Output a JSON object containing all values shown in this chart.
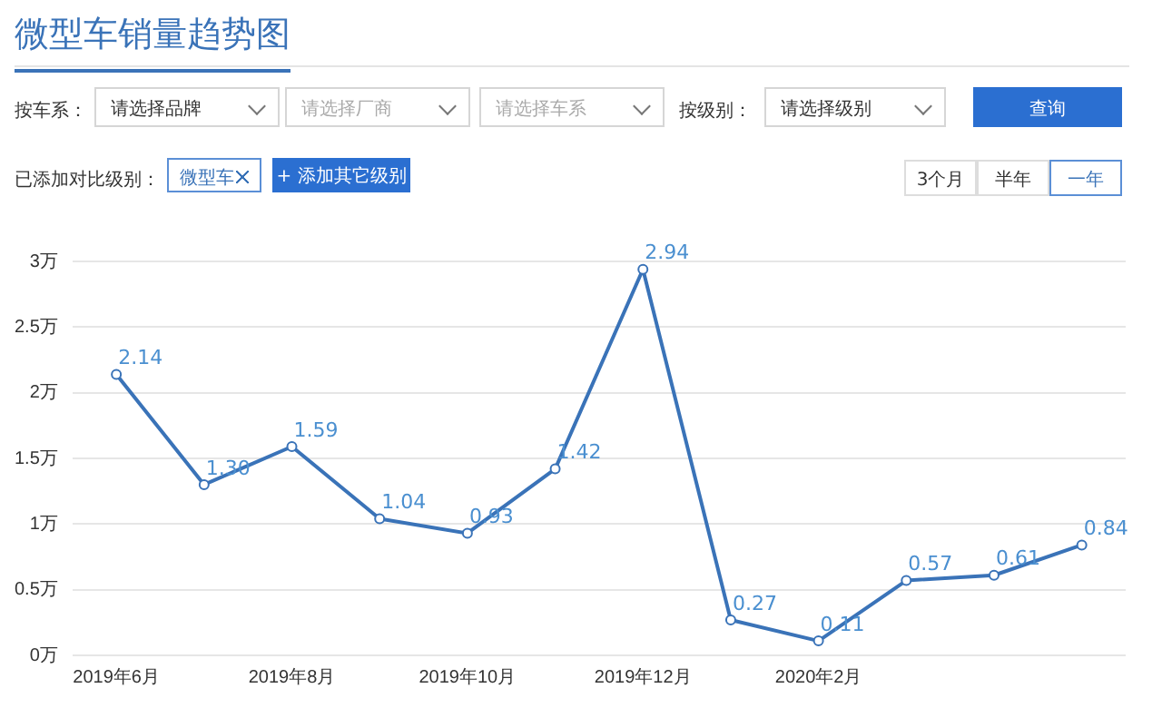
{
  "chart_data": {
    "type": "line",
    "title": "微型车销量趋势图",
    "categories": [
      "2019年6月",
      null,
      "2019年8月",
      null,
      "2019年10月",
      null,
      "2019年12月",
      null,
      "2020年2月",
      null,
      null,
      null
    ],
    "series": [
      {
        "color": "#3a73b8",
        "values": [
          2.14,
          1.3,
          1.59,
          1.04,
          0.93,
          1.42,
          2.94,
          0.27,
          0.11,
          0.57,
          0.61,
          0.84
        ],
        "value_labels": [
          "2.14",
          "1.30",
          "1.59",
          "1.04",
          "0.93",
          "1.42",
          "2.94",
          "0.27",
          "0.11",
          "0.57",
          "0.61",
          "0.84"
        ]
      }
    ],
    "ylim": [
      0,
      3
    ],
    "yticks": [
      {
        "value": 0,
        "label": "0万"
      },
      {
        "value": 0.5,
        "label": "0.5万"
      },
      {
        "value": 1,
        "label": "1万"
      },
      {
        "value": 1.5,
        "label": "1.5万"
      },
      {
        "value": 2,
        "label": "2万"
      },
      {
        "value": 2.5,
        "label": "2.5万"
      },
      {
        "value": 3,
        "label": "3万"
      }
    ],
    "grid": "y",
    "legend": false,
    "marker": "circle",
    "line_style": "solid",
    "annotations": [
      "按车系：",
      "请选择品牌",
      "请选择厂商",
      "请选择车系",
      "按级别：",
      "请选择级别",
      "查询",
      "已添加对比级别：",
      "微型车",
      "+ 添加其它级别",
      "3个月",
      "半年",
      "一年"
    ]
  }
}
